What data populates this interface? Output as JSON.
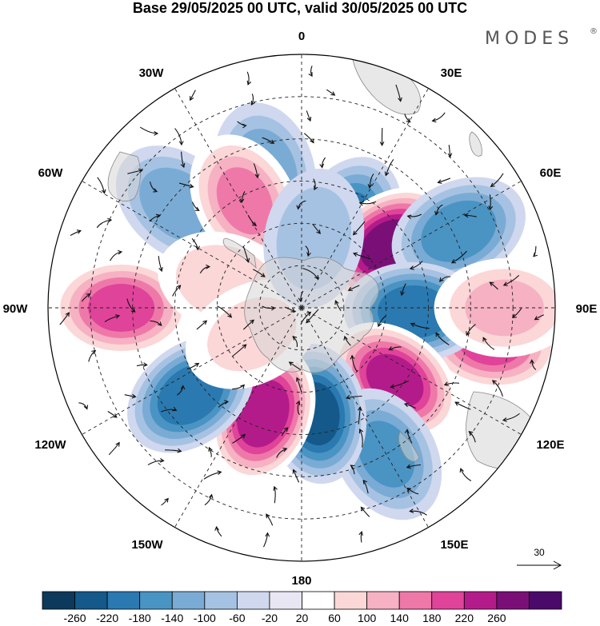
{
  "title": "Base 29/05/2025 00 UTC, valid 30/05/2025 00 UTC",
  "brand": "MODES",
  "brand_mark": "®",
  "map_labels": {
    "top": "0",
    "top_right": "30E",
    "top_left": "30W",
    "right_upper": "60E",
    "left_upper": "60W",
    "right": "90E",
    "left": "90W",
    "right_lower": "120E",
    "left_lower": "120W",
    "bottom_right": "150E",
    "bottom_left": "150W",
    "bottom": "180"
  },
  "reference_vector": "30",
  "colorbar": {
    "ticks": [
      "-260",
      "-220",
      "-180",
      "-140",
      "-100",
      "-60",
      "-20",
      "20",
      "60",
      "100",
      "140",
      "180",
      "220",
      "260"
    ],
    "colors": [
      "#0d3a5c",
      "#14598a",
      "#2a79b0",
      "#4a94c4",
      "#7aabd4",
      "#a6c2e2",
      "#cfd8ee",
      "#e9e6f3",
      "#ffffff",
      "#fbd7d8",
      "#f6b1c3",
      "#ee79a8",
      "#e0439a",
      "#b41b8a",
      "#7a1077",
      "#4a0a6a"
    ]
  },
  "anomalies": [
    {
      "lon": 100,
      "lat": -22,
      "value": 180
    },
    {
      "lon": 28,
      "lat": -56,
      "value": -180
    },
    {
      "lon": 54,
      "lat": -52,
      "value": 260
    },
    {
      "lon": 64,
      "lat": -28,
      "value": -160
    },
    {
      "lon": 92,
      "lat": -50,
      "value": -200
    },
    {
      "lon": 90,
      "lat": -18,
      "value": 100
    },
    {
      "lon": 128,
      "lat": -48,
      "value": 220
    },
    {
      "lon": 150,
      "lat": -30,
      "value": -140
    },
    {
      "lon": 172,
      "lat": -52,
      "value": -220
    },
    {
      "lon": -160,
      "lat": -50,
      "value": 240
    },
    {
      "lon": -128,
      "lat": -40,
      "value": -200
    },
    {
      "lon": -90,
      "lat": -26,
      "value": 180
    },
    {
      "lon": -50,
      "lat": -33,
      "value": -120
    },
    {
      "lon": -15,
      "lat": -40,
      "value": -120
    },
    {
      "lon": -28,
      "lat": -47,
      "value": 140
    },
    {
      "lon": -72,
      "lat": -62,
      "value": 80
    },
    {
      "lon": -118,
      "lat": -70,
      "value": 60
    },
    {
      "lon": 10,
      "lat": -65,
      "value": -80
    }
  ]
}
